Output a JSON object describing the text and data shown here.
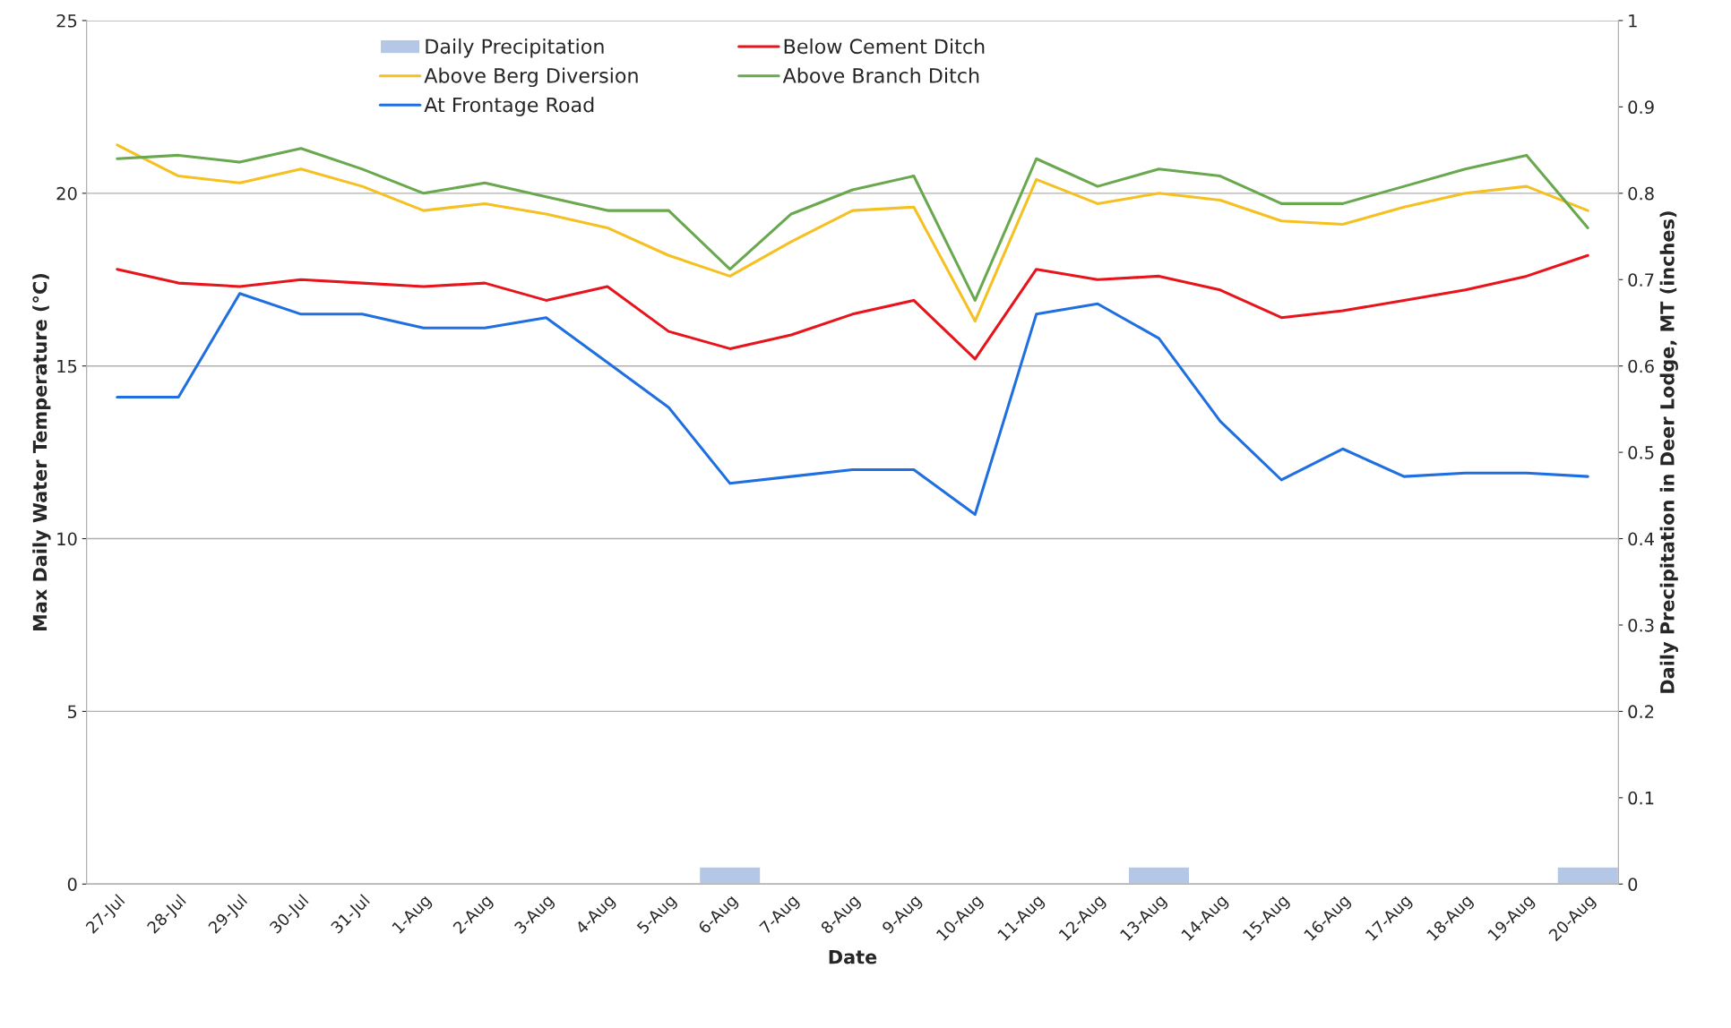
{
  "chart_data": {
    "type": "line",
    "xlabel": "Date",
    "ylabel": "Max Daily Water Temperature (°C)",
    "y2label": "Daily Precipitation in Deer Lodge, MT (inches)",
    "categories": [
      "27-Jul",
      "28-Jul",
      "29-Jul",
      "30-Jul",
      "31-Jul",
      "1-Aug",
      "2-Aug",
      "3-Aug",
      "4-Aug",
      "5-Aug",
      "6-Aug",
      "7-Aug",
      "8-Aug",
      "9-Aug",
      "10-Aug",
      "11-Aug",
      "12-Aug",
      "13-Aug",
      "14-Aug",
      "15-Aug",
      "16-Aug",
      "17-Aug",
      "18-Aug",
      "19-Aug",
      "20-Aug"
    ],
    "series": [
      {
        "name": "Daily Precipitation",
        "type": "bar",
        "axis": "y2",
        "color": "#b4c7e7",
        "values": [
          0,
          0,
          0,
          0,
          0,
          0,
          0,
          0,
          0,
          0,
          0.02,
          0,
          0,
          0,
          0,
          0,
          0,
          0.02,
          0,
          0,
          0,
          0,
          0,
          0,
          0.02
        ]
      },
      {
        "name": "Above Berg Diversion",
        "color": "#f5c022",
        "values": [
          21.4,
          20.5,
          20.3,
          20.7,
          20.2,
          19.5,
          19.7,
          19.4,
          19.0,
          18.2,
          17.6,
          18.6,
          19.5,
          19.6,
          16.3,
          20.4,
          19.7,
          20.0,
          19.8,
          19.2,
          19.1,
          19.6,
          20.0,
          20.2,
          19.5
        ]
      },
      {
        "name": "At Frontage Road",
        "color": "#1f6fe0",
        "values": [
          14.1,
          14.1,
          17.1,
          16.5,
          16.5,
          16.1,
          16.1,
          16.4,
          15.1,
          13.8,
          11.6,
          11.8,
          12.0,
          12.0,
          10.7,
          16.5,
          16.8,
          15.8,
          13.4,
          11.7,
          12.6,
          11.8,
          11.9,
          11.9,
          11.8
        ]
      },
      {
        "name": "Below Cement Ditch",
        "color": "#e8141c",
        "values": [
          17.8,
          17.4,
          17.3,
          17.5,
          17.4,
          17.3,
          17.4,
          16.9,
          17.3,
          16.0,
          15.5,
          15.9,
          16.5,
          16.9,
          15.2,
          17.8,
          17.5,
          17.6,
          17.2,
          16.4,
          16.6,
          16.9,
          17.2,
          17.6,
          18.2
        ]
      },
      {
        "name": "Above Branch Ditch",
        "color": "#6aa84f",
        "values": [
          21.0,
          21.1,
          20.9,
          21.3,
          20.7,
          20.0,
          20.3,
          19.9,
          19.5,
          19.5,
          17.8,
          19.4,
          20.1,
          20.5,
          16.9,
          21.0,
          20.2,
          20.7,
          20.5,
          19.7,
          19.7,
          20.2,
          20.7,
          21.1,
          19.0
        ]
      }
    ],
    "ylim": [
      0,
      25
    ],
    "yticks": [
      0,
      5,
      10,
      15,
      20,
      25
    ],
    "y2lim": [
      0,
      1
    ],
    "y2ticks": [
      0,
      0.1,
      0.2,
      0.3,
      0.4,
      0.5,
      0.6,
      0.7,
      0.8,
      0.9,
      1
    ],
    "grid": "y",
    "legend": "top left",
    "line_style": "solid",
    "marker": "none"
  }
}
